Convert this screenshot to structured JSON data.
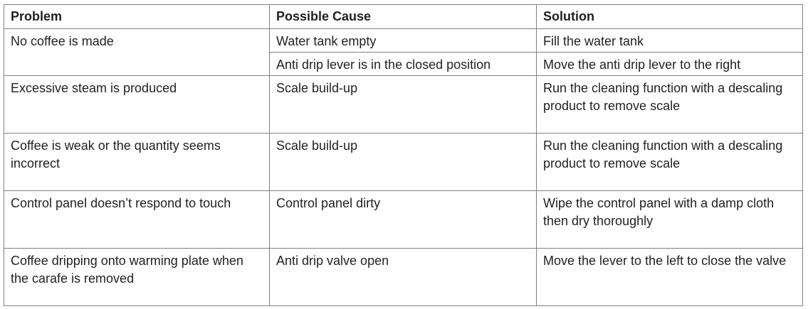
{
  "headers": {
    "problem": "Problem",
    "cause": "Possible Cause",
    "solution": "Solution"
  },
  "rows": [
    {
      "problem": "No coffee is made",
      "causes": [
        {
          "cause": "Water tank empty",
          "solution": "Fill the water tank"
        },
        {
          "cause": "Anti drip lever is in the closed position",
          "solution": "Move the anti drip lever to the right"
        }
      ]
    },
    {
      "problem": "Excessive steam is produced",
      "cause": "Scale build-up",
      "solution": "Run the cleaning function with a descaling product to remove scale"
    },
    {
      "problem": "Coffee is weak or the quantity seems incorrect",
      "cause": "Scale build-up",
      "solution": "Run the cleaning function with a descaling product to remove scale"
    },
    {
      "problem": "Control panel doesn’t respond to touch",
      "cause": "Control panel dirty",
      "solution": "Wipe the control panel with a damp cloth then dry thoroughly"
    },
    {
      "problem": "Coffee dripping onto warming plate when the carafe is removed",
      "cause": "Anti drip valve open",
      "solution": "Move the lever to the left to close the valve"
    }
  ]
}
